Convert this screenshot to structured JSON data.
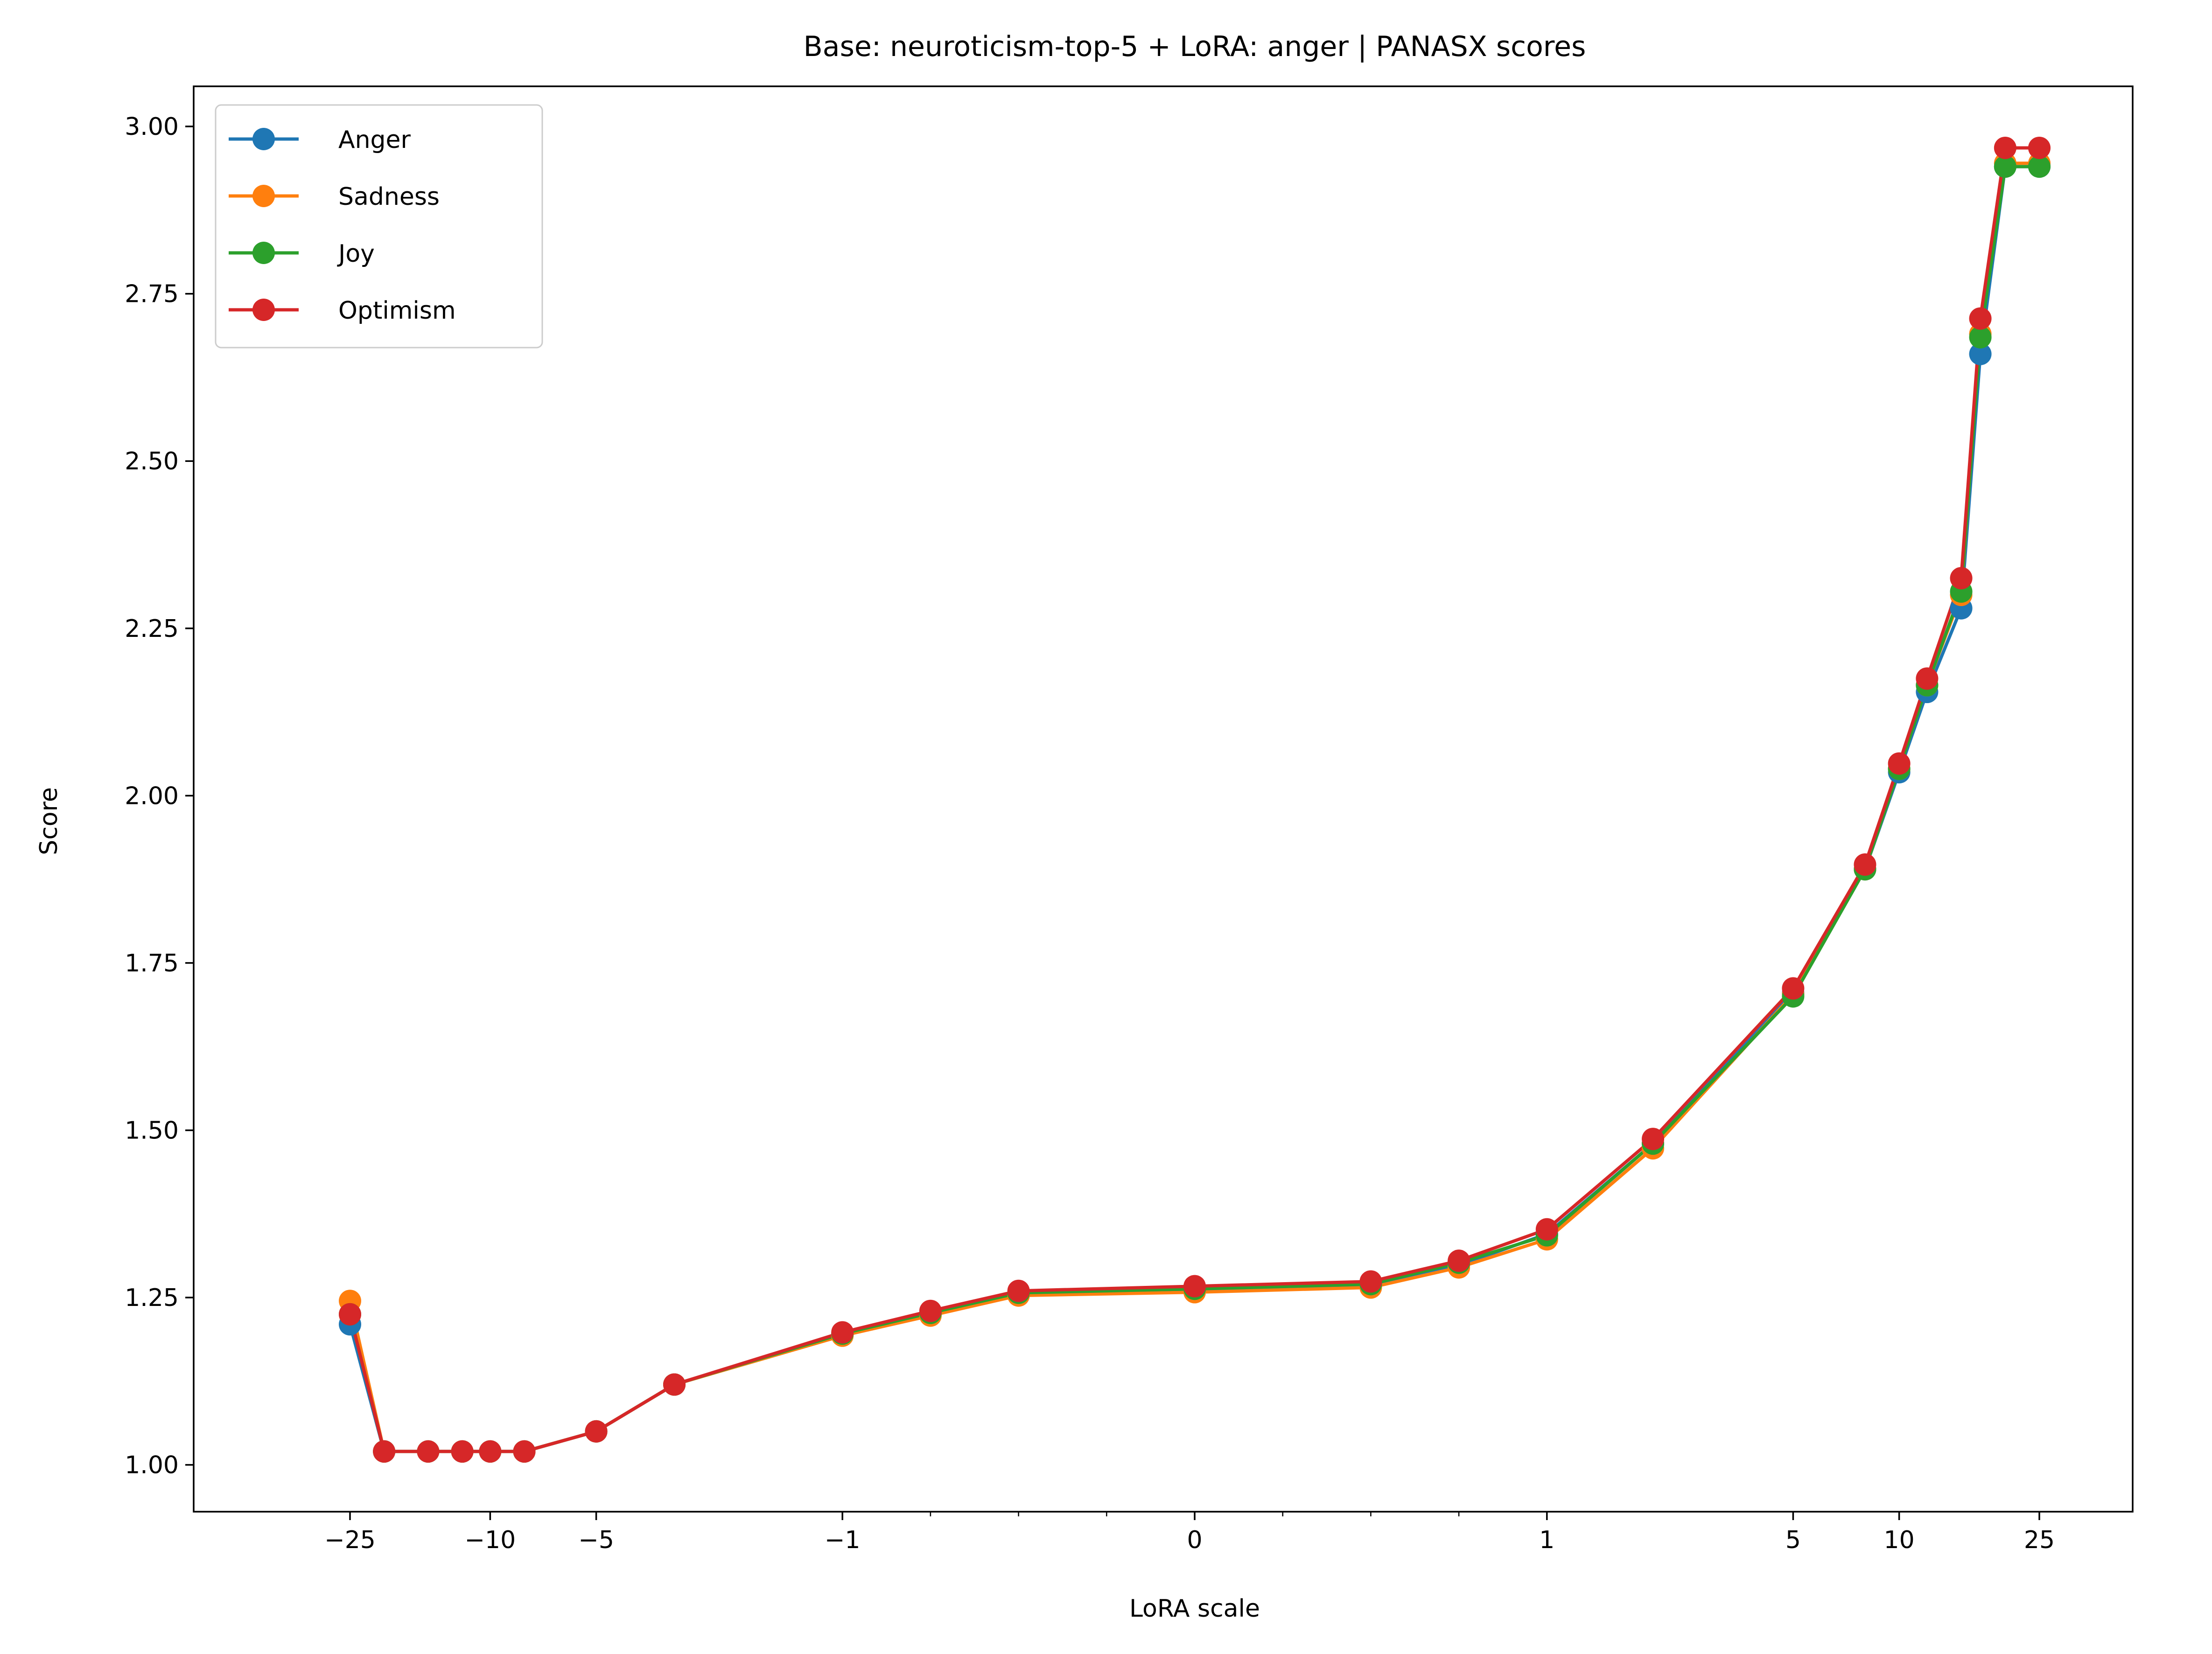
{
  "chart_data": {
    "type": "line",
    "title": "Base: neuroticism-top-5 + LoRA: anger | PANASX scores",
    "xlabel": "LoRA scale",
    "ylabel": "Score",
    "xscale": "symlog",
    "ylim": [
      0.93,
      3.06
    ],
    "yticks": [
      1.0,
      1.25,
      1.5,
      1.75,
      2.0,
      2.25,
      2.5,
      2.75,
      3.0
    ],
    "ytick_labels": [
      "1.00",
      "1.25",
      "1.50",
      "1.75",
      "2.00",
      "2.25",
      "2.50",
      "2.75",
      "3.00"
    ],
    "xticks": [
      -25,
      -10,
      -5,
      -1,
      0,
      1,
      5,
      10,
      25
    ],
    "xtick_labels": [
      "−25",
      "−10",
      "−5",
      "−1",
      "0",
      "1",
      "5",
      "10",
      "25"
    ],
    "grid": false,
    "legend_position": "upper-left",
    "x": [
      -25,
      -20,
      -15,
      -12,
      -10,
      -8,
      -5,
      -3,
      -1,
      -0.75,
      -0.5,
      0,
      0.5,
      0.75,
      1,
      2,
      5,
      8,
      10,
      12,
      15,
      17,
      20,
      25
    ],
    "series": [
      {
        "name": "Anger",
        "color": "#1f77b4",
        "values": [
          1.21,
          1.02,
          1.02,
          1.02,
          1.02,
          1.02,
          1.05,
          1.12,
          1.195,
          1.225,
          1.255,
          1.26,
          1.268,
          1.298,
          1.345,
          1.48,
          1.705,
          1.89,
          2.035,
          2.155,
          2.28,
          2.66,
          2.94,
          2.94
        ]
      },
      {
        "name": "Sadness",
        "color": "#ff7f0e",
        "values": [
          1.245,
          1.02,
          1.02,
          1.02,
          1.02,
          1.02,
          1.05,
          1.12,
          1.193,
          1.223,
          1.253,
          1.258,
          1.265,
          1.295,
          1.337,
          1.473,
          1.703,
          1.89,
          2.04,
          2.165,
          2.3,
          2.69,
          2.945,
          2.945
        ]
      },
      {
        "name": "Joy",
        "color": "#2ca02c",
        "values": [
          1.225,
          1.02,
          1.02,
          1.02,
          1.02,
          1.02,
          1.05,
          1.12,
          1.196,
          1.227,
          1.257,
          1.263,
          1.27,
          1.302,
          1.343,
          1.48,
          1.7,
          1.89,
          2.04,
          2.165,
          2.305,
          2.685,
          2.94,
          2.94
        ]
      },
      {
        "name": "Optimism",
        "color": "#d62728",
        "values": [
          1.225,
          1.02,
          1.02,
          1.02,
          1.02,
          1.02,
          1.05,
          1.12,
          1.198,
          1.23,
          1.26,
          1.267,
          1.274,
          1.305,
          1.352,
          1.487,
          1.712,
          1.897,
          2.048,
          2.175,
          2.325,
          2.713,
          2.968,
          2.968
        ]
      }
    ]
  }
}
